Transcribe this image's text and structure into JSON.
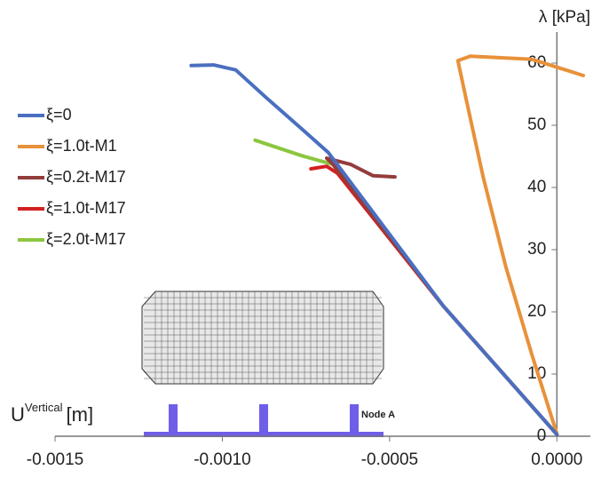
{
  "chart_data": {
    "type": "line",
    "y_label": "λ [kPa]",
    "x_label": {
      "base": "U",
      "superscript": "Vertical",
      "unit": "[m]"
    },
    "annotation": "Node A",
    "xlim": [
      -0.0015,
      0.0001
    ],
    "ylim": [
      0,
      65
    ],
    "xticks": [
      {
        "value": -0.0015,
        "label": "-0.0015"
      },
      {
        "value": -0.001,
        "label": "-0.0010"
      },
      {
        "value": -0.0005,
        "label": "-0.0005"
      },
      {
        "value": 0,
        "label": "0.0000"
      }
    ],
    "yticks": [
      0,
      10,
      20,
      30,
      40,
      50,
      60
    ],
    "legend": "upper-left",
    "series": [
      {
        "name": "ξ=0",
        "color": "#4a6fc0",
        "x": [
          -0.001093,
          -0.001026,
          -0.00096,
          -0.000868,
          -0.000762,
          -0.000683,
          -0.000339,
          0
        ],
        "values": [
          59.6,
          59.7,
          58.9,
          54.4,
          49.4,
          45.6,
          20.9,
          0.3
        ]
      },
      {
        "name": "ξ=1.0t-M1",
        "color": "#e8913a",
        "x": [
          0,
          -7.4e-05,
          -0.000153,
          -0.00022,
          -0.000272,
          -0.000296,
          -0.000259,
          -7.4e-05,
          7.9e-05
        ],
        "values": [
          0.4,
          13,
          27.3,
          41.6,
          54.4,
          60.4,
          61.1,
          60.6,
          58
        ]
      },
      {
        "name": "ξ=0.2t-M17",
        "color": "#943c3c",
        "x": [
          -0.000484,
          -0.00055,
          -0.000616,
          -0.000688,
          -0.000669,
          -0.000339,
          0
        ],
        "values": [
          41.7,
          41.9,
          43.7,
          44.7,
          43.7,
          20.9,
          0.3
        ]
      },
      {
        "name": "ξ=1.0t-M17",
        "color": "#d42020",
        "x": [
          -0.000735,
          -0.000688,
          -0.000656,
          -0.000339,
          0
        ],
        "values": [
          43,
          43.4,
          42.3,
          20.9,
          0.3
        ]
      },
      {
        "name": "ξ=2.0t-M17",
        "color": "#8cc63f",
        "x": [
          -0.000902,
          -0.000762,
          -0.000669,
          -0.000339,
          0
        ],
        "values": [
          47.6,
          45.1,
          43.7,
          20.9,
          0.3
        ]
      }
    ]
  }
}
